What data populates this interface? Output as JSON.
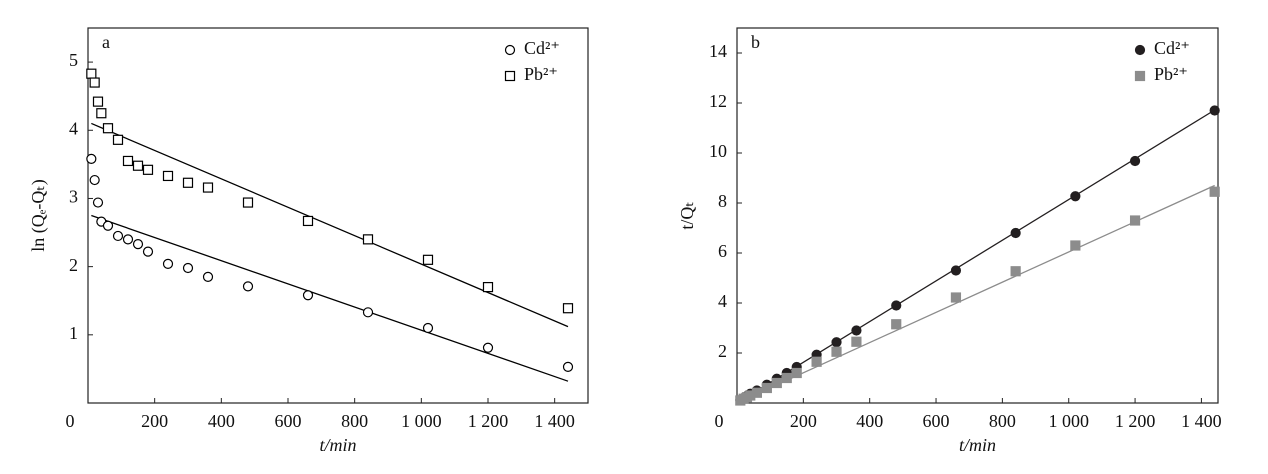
{
  "chart_data": [
    {
      "type": "scatter",
      "panel": "a",
      "xlabel": "t/min",
      "ylabel": "ln (Qₑ-Qₜ)",
      "xlim": [
        0,
        1500
      ],
      "ylim": [
        0,
        5.5
      ],
      "xticks": [
        0,
        200,
        400,
        600,
        800,
        {
          "value": 1000,
          "label": "1 000"
        },
        {
          "value": 1200,
          "label": "1 200"
        },
        {
          "value": 1400,
          "label": "1 400"
        }
      ],
      "yticks": [
        1,
        2,
        3,
        4,
        5
      ],
      "legend": "upper right",
      "series": [
        {
          "name": "Cd²⁺",
          "color": "#000000",
          "marker": "circle",
          "filled": false,
          "x": [
            10,
            20,
            30,
            40,
            60,
            90,
            120,
            150,
            180,
            240,
            300,
            360,
            480,
            660,
            840,
            1020,
            1200,
            1440
          ],
          "values": [
            3.58,
            3.27,
            2.94,
            2.66,
            2.6,
            2.45,
            2.4,
            2.33,
            2.22,
            2.04,
            1.98,
            1.85,
            1.71,
            1.58,
            1.33,
            1.1,
            0.81,
            0.53
          ],
          "fit": {
            "x": [
              10,
              1440
            ],
            "values": [
              2.75,
              0.32
            ]
          }
        },
        {
          "name": "Pb²⁺",
          "color": "#000000",
          "marker": "square",
          "filled": false,
          "x": [
            10,
            20,
            30,
            40,
            60,
            90,
            120,
            150,
            180,
            240,
            300,
            360,
            480,
            660,
            840,
            1020,
            1200,
            1440
          ],
          "values": [
            4.83,
            4.7,
            4.42,
            4.25,
            4.03,
            3.86,
            3.55,
            3.48,
            3.42,
            3.33,
            3.23,
            3.16,
            2.94,
            2.67,
            2.4,
            2.1,
            1.7,
            1.39
          ],
          "fit": {
            "x": [
              10,
              1440
            ],
            "values": [
              4.1,
              1.12
            ]
          }
        }
      ]
    },
    {
      "type": "scatter",
      "panel": "b",
      "xlabel": "t/min",
      "ylabel": "t/Qₜ",
      "xlim": [
        0,
        1450
      ],
      "ylim": [
        0,
        15
      ],
      "xticks": [
        0,
        200,
        400,
        600,
        800,
        {
          "value": 1000,
          "label": "1 000"
        },
        {
          "value": 1200,
          "label": "1 200"
        },
        {
          "value": 1400,
          "label": "1 400"
        }
      ],
      "yticks": [
        2,
        4,
        6,
        8,
        10,
        12,
        14
      ],
      "legend": "upper right",
      "series": [
        {
          "name": "Cd²⁺",
          "color": "#231f20",
          "marker": "circle",
          "filled": true,
          "x": [
            10,
            20,
            30,
            40,
            60,
            90,
            120,
            150,
            180,
            240,
            300,
            360,
            480,
            660,
            840,
            1020,
            1200,
            1440
          ],
          "values": [
            0.12,
            0.2,
            0.28,
            0.37,
            0.5,
            0.73,
            0.97,
            1.2,
            1.44,
            1.93,
            2.43,
            2.9,
            3.9,
            5.3,
            6.8,
            8.27,
            9.68,
            11.7
          ],
          "fit": {
            "x": [
              0,
              1440
            ],
            "values": [
              0,
              11.72
            ]
          }
        },
        {
          "name": "Pb²⁺",
          "color": "#8c8c8c",
          "marker": "square",
          "filled": true,
          "x": [
            10,
            20,
            30,
            40,
            60,
            90,
            120,
            150,
            180,
            240,
            300,
            360,
            480,
            660,
            840,
            1020,
            1200,
            1440
          ],
          "values": [
            0.1,
            0.17,
            0.23,
            0.3,
            0.41,
            0.6,
            0.8,
            1.0,
            1.2,
            1.65,
            2.05,
            2.45,
            3.15,
            4.22,
            5.27,
            6.3,
            7.3,
            8.45
          ],
          "fit": {
            "x": [
              0,
              1440
            ],
            "values": [
              0,
              8.7
            ]
          }
        }
      ]
    }
  ]
}
